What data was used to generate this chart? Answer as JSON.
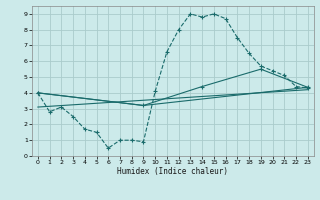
{
  "xlabel": "Humidex (Indice chaleur)",
  "bg_color": "#cceaea",
  "grid_color": "#aacccc",
  "line_color": "#1a6b6b",
  "xlim": [
    -0.5,
    23.5
  ],
  "ylim": [
    0,
    9.5
  ],
  "xticks": [
    0,
    1,
    2,
    3,
    4,
    5,
    6,
    7,
    8,
    9,
    10,
    11,
    12,
    13,
    14,
    15,
    16,
    17,
    18,
    19,
    20,
    21,
    22,
    23
  ],
  "yticks": [
    0,
    1,
    2,
    3,
    4,
    5,
    6,
    7,
    8,
    9
  ],
  "series1_x": [
    0,
    1,
    2,
    3,
    4,
    5,
    6,
    7,
    8,
    9,
    10,
    11,
    12,
    13,
    14,
    15,
    16,
    17,
    18,
    19,
    20,
    21,
    22,
    23
  ],
  "series1_y": [
    4.0,
    2.8,
    3.1,
    2.5,
    1.7,
    1.5,
    0.5,
    1.0,
    1.0,
    0.9,
    4.1,
    6.6,
    8.0,
    9.0,
    8.8,
    9.0,
    8.7,
    7.5,
    6.5,
    5.7,
    5.4,
    5.1,
    4.4,
    4.3
  ],
  "series2_x": [
    0,
    9,
    23
  ],
  "series2_y": [
    4.0,
    3.2,
    4.35
  ],
  "series3_x": [
    0,
    9,
    14,
    19,
    23
  ],
  "series3_y": [
    4.0,
    3.2,
    4.4,
    5.5,
    4.35
  ],
  "series4_x": [
    0,
    23
  ],
  "series4_y": [
    3.1,
    4.2
  ]
}
